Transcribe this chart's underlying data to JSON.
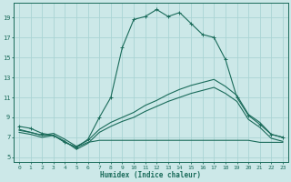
{
  "background_color": "#cce8e8",
  "grid_color": "#aad4d4",
  "line_color": "#1a6b5a",
  "xlabel": "Humidex (Indice chaleur)",
  "xlim": [
    -0.5,
    23.5
  ],
  "ylim": [
    4.5,
    20.5
  ],
  "xticks": [
    0,
    1,
    2,
    3,
    4,
    5,
    6,
    7,
    8,
    9,
    10,
    11,
    12,
    13,
    14,
    15,
    16,
    17,
    18,
    19,
    20,
    21,
    22,
    23
  ],
  "yticks": [
    5,
    7,
    9,
    11,
    13,
    15,
    17,
    19
  ],
  "curve_main_x": [
    0,
    1,
    2,
    3,
    4,
    5,
    6,
    7,
    8,
    9,
    10,
    11,
    12,
    13,
    14,
    15,
    16,
    17,
    18,
    19,
    20,
    21,
    22,
    23
  ],
  "curve_main_y": [
    8.1,
    7.9,
    7.4,
    7.2,
    6.5,
    6.0,
    6.8,
    9.0,
    11.0,
    16.0,
    18.8,
    19.1,
    19.8,
    19.1,
    19.5,
    18.4,
    17.3,
    17.0,
    14.8,
    11.0,
    9.2,
    8.3,
    7.3,
    7.0
  ],
  "curve_diag1_x": [
    0,
    1,
    2,
    3,
    4,
    5,
    6,
    7,
    8,
    9,
    10,
    11,
    12,
    13,
    14,
    15,
    16,
    17,
    18,
    19,
    20,
    21,
    22,
    23
  ],
  "curve_diag1_y": [
    7.7,
    7.5,
    7.2,
    7.4,
    6.8,
    6.1,
    6.7,
    7.8,
    8.5,
    9.0,
    9.5,
    10.2,
    10.7,
    11.3,
    11.8,
    12.2,
    12.5,
    12.8,
    12.1,
    11.2,
    9.3,
    8.5,
    7.3,
    7.0
  ],
  "curve_diag2_x": [
    0,
    1,
    2,
    3,
    4,
    5,
    6,
    7,
    8,
    9,
    10,
    11,
    12,
    13,
    14,
    15,
    16,
    17,
    18,
    19,
    20,
    21,
    22,
    23
  ],
  "curve_diag2_y": [
    7.5,
    7.3,
    7.0,
    7.2,
    6.6,
    5.8,
    6.4,
    7.5,
    8.1,
    8.6,
    9.0,
    9.6,
    10.1,
    10.6,
    11.0,
    11.4,
    11.7,
    12.0,
    11.4,
    10.6,
    8.8,
    8.0,
    6.9,
    6.6
  ],
  "curve_flat_x": [
    0,
    1,
    2,
    3,
    4,
    5,
    6,
    7,
    8,
    9,
    10,
    11,
    12,
    13,
    14,
    15,
    16,
    17,
    18,
    19,
    20,
    21,
    22,
    23
  ],
  "curve_flat_y": [
    7.8,
    7.5,
    7.2,
    7.2,
    6.5,
    6.0,
    6.5,
    6.7,
    6.7,
    6.7,
    6.7,
    6.7,
    6.7,
    6.7,
    6.7,
    6.7,
    6.7,
    6.7,
    6.7,
    6.7,
    6.7,
    6.5,
    6.5,
    6.5
  ]
}
